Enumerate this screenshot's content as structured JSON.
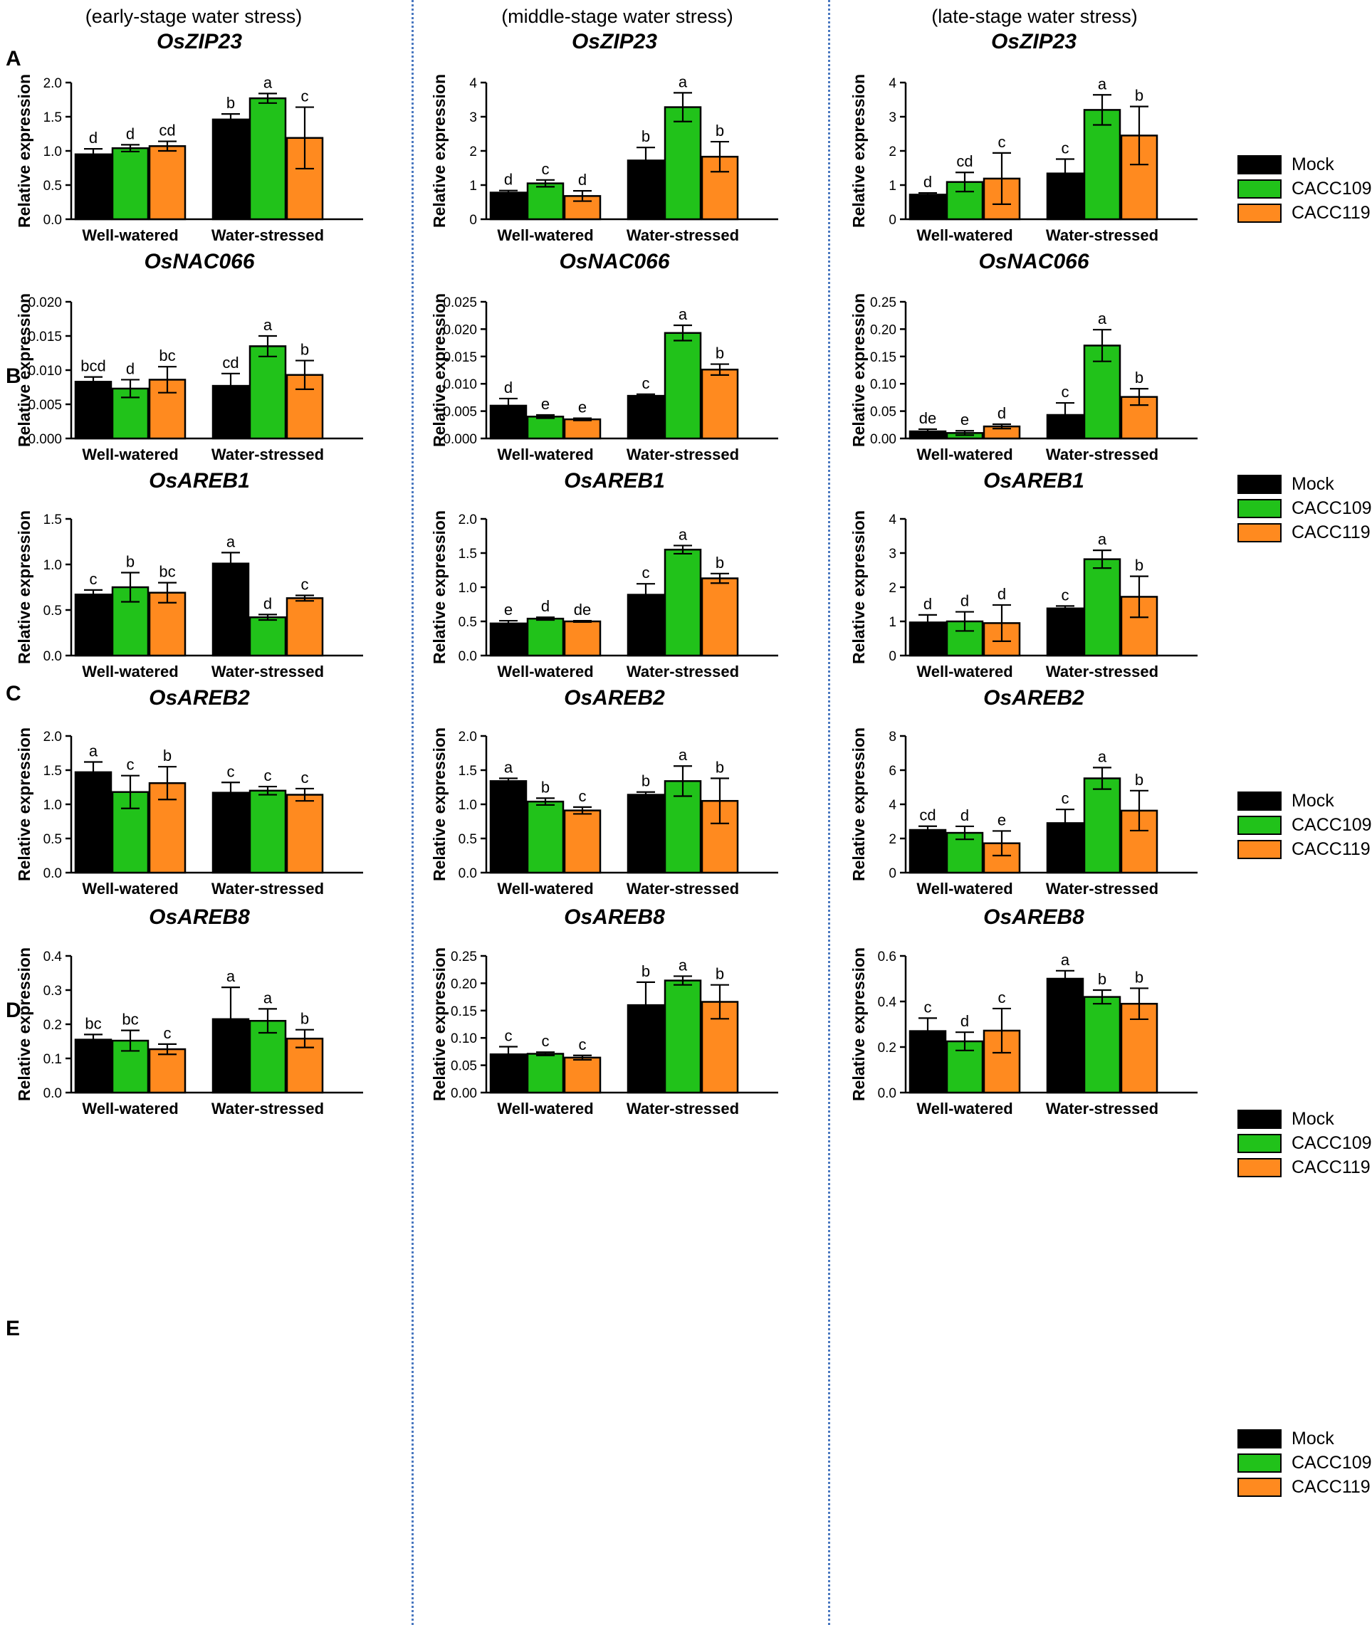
{
  "figure": {
    "stages": [
      "(early-stage water stress)",
      "(middle-stage water stress)",
      "(late-stage water stress)"
    ],
    "row_labels": [
      "A",
      "B",
      "C",
      "D",
      "E"
    ],
    "genes": [
      "OsZIP23",
      "OsNAC066",
      "OsAREB1",
      "OsAREB2",
      "OsAREB8"
    ],
    "legend": [
      {
        "label": "Mock",
        "color": "#000000"
      },
      {
        "label": "CACC109",
        "color": "#21c21a"
      },
      {
        "label": "CACC119",
        "color": "#ff8a1f"
      }
    ]
  },
  "chart_data": [
    {
      "type": "bar",
      "title": "OsZIP23",
      "stage": "(early-stage water stress)",
      "ylabel": "Relative expression",
      "ylim": [
        0,
        2.0
      ],
      "yticks": [
        "0.0",
        "0.5",
        "1.0",
        "1.5",
        "2.0"
      ],
      "categories": [
        "Well-watered",
        "Water-stressed"
      ],
      "series": [
        {
          "name": "Mock",
          "values": [
            0.95,
            1.46
          ],
          "err": [
            0.08,
            0.08
          ],
          "letters": [
            "d",
            "b"
          ]
        },
        {
          "name": "CACC109",
          "values": [
            1.04,
            1.77
          ],
          "err": [
            0.05,
            0.07
          ],
          "letters": [
            "d",
            "a"
          ]
        },
        {
          "name": "CACC119",
          "values": [
            1.07,
            1.19
          ],
          "err": [
            0.07,
            0.45
          ],
          "letters": [
            "cd",
            "c"
          ]
        }
      ]
    },
    {
      "type": "bar",
      "title": "OsZIP23",
      "stage": "(middle-stage water stress)",
      "ylabel": "Relative expression",
      "ylim": [
        0,
        4
      ],
      "yticks": [
        "0",
        "1",
        "2",
        "3",
        "4"
      ],
      "categories": [
        "Well-watered",
        "Water-stressed"
      ],
      "series": [
        {
          "name": "Mock",
          "values": [
            0.78,
            1.72
          ],
          "err": [
            0.06,
            0.38
          ],
          "letters": [
            "d",
            "b"
          ]
        },
        {
          "name": "CACC109",
          "values": [
            1.05,
            3.28
          ],
          "err": [
            0.1,
            0.42
          ],
          "letters": [
            "c",
            "a"
          ]
        },
        {
          "name": "CACC119",
          "values": [
            0.68,
            1.83
          ],
          "err": [
            0.15,
            0.44
          ],
          "letters": [
            "d",
            "b"
          ]
        }
      ]
    },
    {
      "type": "bar",
      "title": "OsZIP23",
      "stage": "(late-stage water stress)",
      "ylabel": "Relative expression",
      "ylim": [
        0,
        4
      ],
      "yticks": [
        "0",
        "1",
        "2",
        "3",
        "4"
      ],
      "categories": [
        "Well-watered",
        "Water-stressed"
      ],
      "series": [
        {
          "name": "Mock",
          "values": [
            0.72,
            1.34
          ],
          "err": [
            0.05,
            0.42
          ],
          "letters": [
            "d",
            "c"
          ]
        },
        {
          "name": "CACC109",
          "values": [
            1.09,
            3.2
          ],
          "err": [
            0.28,
            0.44
          ],
          "letters": [
            "cd",
            "a"
          ]
        },
        {
          "name": "CACC119",
          "values": [
            1.19,
            2.45
          ],
          "err": [
            0.75,
            0.85
          ],
          "letters": [
            "c",
            "b"
          ]
        }
      ]
    },
    {
      "type": "bar",
      "title": "OsNAC066",
      "stage": "(early-stage water stress)",
      "ylabel": "Relative expression",
      "ylim": [
        0,
        0.02
      ],
      "yticks": [
        "0.000",
        "0.005",
        "0.010",
        "0.015",
        "0.020"
      ],
      "categories": [
        "Well-watered",
        "Water-stressed"
      ],
      "series": [
        {
          "name": "Mock",
          "values": [
            0.0083,
            0.0077
          ],
          "err": [
            0.0007,
            0.0018
          ],
          "letters": [
            "bcd",
            "cd"
          ]
        },
        {
          "name": "CACC109",
          "values": [
            0.0073,
            0.0135
          ],
          "err": [
            0.0013,
            0.0015
          ],
          "letters": [
            "d",
            "a"
          ]
        },
        {
          "name": "CACC119",
          "values": [
            0.0086,
            0.0093
          ],
          "err": [
            0.0019,
            0.0021
          ],
          "letters": [
            "bc",
            "b"
          ]
        }
      ]
    },
    {
      "type": "bar",
      "title": "OsNAC066",
      "stage": "(middle-stage water stress)",
      "ylabel": "Relative expression",
      "ylim": [
        0,
        0.025
      ],
      "yticks": [
        "0.000",
        "0.005",
        "0.010",
        "0.015",
        "0.020",
        "0.025"
      ],
      "categories": [
        "Well-watered",
        "Water-stressed"
      ],
      "series": [
        {
          "name": "Mock",
          "values": [
            0.006,
            0.0078
          ],
          "err": [
            0.0013,
            0.0003
          ],
          "letters": [
            "d",
            "c"
          ]
        },
        {
          "name": "CACC109",
          "values": [
            0.004,
            0.0193
          ],
          "err": [
            0.0003,
            0.0014
          ],
          "letters": [
            "e",
            "a"
          ]
        },
        {
          "name": "CACC119",
          "values": [
            0.0035,
            0.0126
          ],
          "err": [
            0.0002,
            0.001
          ],
          "letters": [
            "e",
            "b"
          ]
        }
      ]
    },
    {
      "type": "bar",
      "title": "OsNAC066",
      "stage": "(late-stage water stress)",
      "ylabel": "Relative expression",
      "ylim": [
        0,
        0.25
      ],
      "yticks": [
        "0.00",
        "0.05",
        "0.10",
        "0.15",
        "0.20",
        "0.25"
      ],
      "categories": [
        "Well-watered",
        "Water-stressed"
      ],
      "series": [
        {
          "name": "Mock",
          "values": [
            0.013,
            0.043
          ],
          "err": [
            0.004,
            0.022
          ],
          "letters": [
            "de",
            "c"
          ]
        },
        {
          "name": "CACC109",
          "values": [
            0.01,
            0.17
          ],
          "err": [
            0.004,
            0.029
          ],
          "letters": [
            "e",
            "a"
          ]
        },
        {
          "name": "CACC119",
          "values": [
            0.022,
            0.076
          ],
          "err": [
            0.004,
            0.015
          ],
          "letters": [
            "d",
            "b"
          ]
        }
      ]
    },
    {
      "type": "bar",
      "title": "OsAREB1",
      "stage": "(early-stage water stress)",
      "ylabel": "Relative expression",
      "ylim": [
        0,
        1.5
      ],
      "yticks": [
        "0.0",
        "0.5",
        "1.0",
        "1.5"
      ],
      "categories": [
        "Well-watered",
        "Water-stressed"
      ],
      "series": [
        {
          "name": "Mock",
          "values": [
            0.67,
            1.01
          ],
          "err": [
            0.05,
            0.12
          ],
          "letters": [
            "c",
            "a"
          ]
        },
        {
          "name": "CACC109",
          "values": [
            0.75,
            0.42
          ],
          "err": [
            0.16,
            0.03
          ],
          "letters": [
            "b",
            "d"
          ]
        },
        {
          "name": "CACC119",
          "values": [
            0.69,
            0.63
          ],
          "err": [
            0.11,
            0.03
          ],
          "letters": [
            "bc",
            "c"
          ]
        }
      ]
    },
    {
      "type": "bar",
      "title": "OsAREB1",
      "stage": "(middle-stage water stress)",
      "ylabel": "Relative expression",
      "ylim": [
        0,
        2.0
      ],
      "yticks": [
        "0.0",
        "0.5",
        "1.0",
        "1.5",
        "2.0"
      ],
      "categories": [
        "Well-watered",
        "Water-stressed"
      ],
      "series": [
        {
          "name": "Mock",
          "values": [
            0.47,
            0.89
          ],
          "err": [
            0.04,
            0.16
          ],
          "letters": [
            "e",
            "c"
          ]
        },
        {
          "name": "CACC109",
          "values": [
            0.54,
            1.55
          ],
          "err": [
            0.02,
            0.06
          ],
          "letters": [
            "d",
            "a"
          ]
        },
        {
          "name": "CACC119",
          "values": [
            0.5,
            1.13
          ],
          "err": [
            0.01,
            0.07
          ],
          "letters": [
            "de",
            "b"
          ]
        }
      ]
    },
    {
      "type": "bar",
      "title": "OsAREB1",
      "stage": "(late-stage water stress)",
      "ylabel": "Relative expression",
      "ylim": [
        0,
        4
      ],
      "yticks": [
        "0",
        "1",
        "2",
        "3",
        "4"
      ],
      "categories": [
        "Well-watered",
        "Water-stressed"
      ],
      "series": [
        {
          "name": "Mock",
          "values": [
            0.97,
            1.38
          ],
          "err": [
            0.22,
            0.07
          ],
          "letters": [
            "d",
            "c"
          ]
        },
        {
          "name": "CACC109",
          "values": [
            1.0,
            2.82
          ],
          "err": [
            0.28,
            0.26
          ],
          "letters": [
            "d",
            "a"
          ]
        },
        {
          "name": "CACC119",
          "values": [
            0.95,
            1.72
          ],
          "err": [
            0.53,
            0.6
          ],
          "letters": [
            "d",
            "b"
          ]
        }
      ]
    },
    {
      "type": "bar",
      "title": "OsAREB2",
      "stage": "(early-stage water stress)",
      "ylabel": "Relative expression",
      "ylim": [
        0,
        2.0
      ],
      "yticks": [
        "0.0",
        "0.5",
        "1.0",
        "1.5",
        "2.0"
      ],
      "categories": [
        "Well-watered",
        "Water-stressed"
      ],
      "series": [
        {
          "name": "Mock",
          "values": [
            1.47,
            1.17
          ],
          "err": [
            0.15,
            0.15
          ],
          "letters": [
            "a",
            "c"
          ]
        },
        {
          "name": "CACC109",
          "values": [
            1.18,
            1.2
          ],
          "err": [
            0.24,
            0.06
          ],
          "letters": [
            "c",
            "c"
          ]
        },
        {
          "name": "CACC119",
          "values": [
            1.31,
            1.14
          ],
          "err": [
            0.24,
            0.09
          ],
          "letters": [
            "b",
            "c"
          ]
        }
      ]
    },
    {
      "type": "bar",
      "title": "OsAREB2",
      "stage": "(middle-stage water stress)",
      "ylabel": "Relative expression",
      "ylim": [
        0,
        2.0
      ],
      "yticks": [
        "0.0",
        "0.5",
        "1.0",
        "1.5",
        "2.0"
      ],
      "categories": [
        "Well-watered",
        "Water-stressed"
      ],
      "series": [
        {
          "name": "Mock",
          "values": [
            1.34,
            1.14
          ],
          "err": [
            0.04,
            0.04
          ],
          "letters": [
            "a",
            "b"
          ]
        },
        {
          "name": "CACC109",
          "values": [
            1.04,
            1.34
          ],
          "err": [
            0.05,
            0.22
          ],
          "letters": [
            "b",
            "a"
          ]
        },
        {
          "name": "CACC119",
          "values": [
            0.91,
            1.05
          ],
          "err": [
            0.05,
            0.33
          ],
          "letters": [
            "c",
            "b"
          ]
        }
      ]
    },
    {
      "type": "bar",
      "title": "OsAREB2",
      "stage": "(late-stage water stress)",
      "ylabel": "Relative expression",
      "ylim": [
        0,
        8
      ],
      "yticks": [
        "0",
        "2",
        "4",
        "6",
        "8"
      ],
      "categories": [
        "Well-watered",
        "Water-stressed"
      ],
      "series": [
        {
          "name": "Mock",
          "values": [
            2.5,
            2.9
          ],
          "err": [
            0.22,
            0.8
          ],
          "letters": [
            "cd",
            "c"
          ]
        },
        {
          "name": "CACC109",
          "values": [
            2.33,
            5.52
          ],
          "err": [
            0.38,
            0.63
          ],
          "letters": [
            "d",
            "a"
          ]
        },
        {
          "name": "CACC119",
          "values": [
            1.72,
            3.63
          ],
          "err": [
            0.72,
            1.17
          ],
          "letters": [
            "e",
            "b"
          ]
        }
      ]
    },
    {
      "type": "bar",
      "title": "OsAREB8",
      "stage": "(early-stage water stress)",
      "ylabel": "Relative expression",
      "ylim": [
        0,
        0.4
      ],
      "yticks": [
        "0.0",
        "0.1",
        "0.2",
        "0.3",
        "0.4"
      ],
      "categories": [
        "Well-watered",
        "Water-stressed"
      ],
      "series": [
        {
          "name": "Mock",
          "values": [
            0.155,
            0.215
          ],
          "err": [
            0.015,
            0.093
          ],
          "letters": [
            "bc",
            "a"
          ]
        },
        {
          "name": "CACC109",
          "values": [
            0.152,
            0.21
          ],
          "err": [
            0.03,
            0.035
          ],
          "letters": [
            "bc",
            "a"
          ]
        },
        {
          "name": "CACC119",
          "values": [
            0.127,
            0.158
          ],
          "err": [
            0.015,
            0.026
          ],
          "letters": [
            "c",
            "b"
          ]
        }
      ]
    },
    {
      "type": "bar",
      "title": "OsAREB8",
      "stage": "(middle-stage water stress)",
      "ylabel": "Relative expression",
      "ylim": [
        0,
        0.25
      ],
      "yticks": [
        "0.00",
        "0.05",
        "0.10",
        "0.15",
        "0.20",
        "0.25"
      ],
      "categories": [
        "Well-watered",
        "Water-stressed"
      ],
      "series": [
        {
          "name": "Mock",
          "values": [
            0.07,
            0.16
          ],
          "err": [
            0.014,
            0.042
          ],
          "letters": [
            "c",
            "b"
          ]
        },
        {
          "name": "CACC109",
          "values": [
            0.071,
            0.205
          ],
          "err": [
            0.003,
            0.008
          ],
          "letters": [
            "c",
            "a"
          ]
        },
        {
          "name": "CACC119",
          "values": [
            0.064,
            0.166
          ],
          "err": [
            0.004,
            0.031
          ],
          "letters": [
            "c",
            "b"
          ]
        }
      ]
    },
    {
      "type": "bar",
      "title": "OsAREB8",
      "stage": "(late-stage water stress)",
      "ylabel": "Relative expression",
      "ylim": [
        0,
        0.6
      ],
      "yticks": [
        "0.0",
        "0.2",
        "0.4",
        "0.6"
      ],
      "categories": [
        "Well-watered",
        "Water-stressed"
      ],
      "series": [
        {
          "name": "Mock",
          "values": [
            0.27,
            0.5
          ],
          "err": [
            0.057,
            0.035
          ],
          "letters": [
            "c",
            "a"
          ]
        },
        {
          "name": "CACC109",
          "values": [
            0.225,
            0.42
          ],
          "err": [
            0.04,
            0.03
          ],
          "letters": [
            "d",
            "b"
          ]
        },
        {
          "name": "CACC119",
          "values": [
            0.272,
            0.39
          ],
          "err": [
            0.097,
            0.068
          ],
          "letters": [
            "c",
            "b"
          ]
        }
      ]
    }
  ]
}
